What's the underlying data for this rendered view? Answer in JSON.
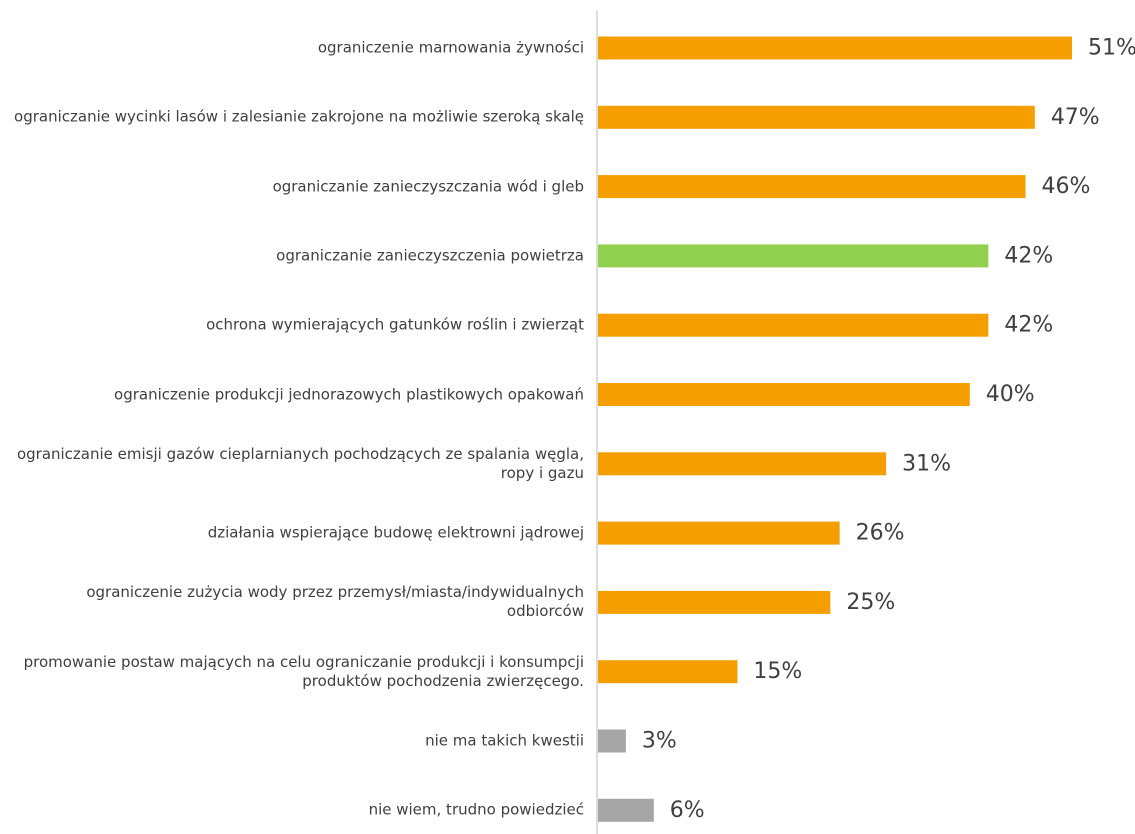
{
  "chart_data": {
    "type": "bar",
    "orientation": "horizontal",
    "title": "",
    "xlabel": "",
    "ylabel": "",
    "xlim": [
      0,
      51
    ],
    "grid": false,
    "legend": "none",
    "categories": [
      "ograniczenie marnowania żywności",
      "ograniczanie wycinki lasów i zalesianie zakrojone na możliwie szeroką skalę",
      "ograniczanie zanieczyszczania wód i gleb",
      "ograniczanie zanieczyszczenia powietrza",
      "ochrona wymierających gatunków roślin i zwierząt",
      "ograniczenie produkcji jednorazowych plastikowych opakowań",
      "ograniczanie emisji gazów cieplarnianych pochodzących ze spalania węgla, ropy i gazu",
      "działania wspierające budowę elektrowni jądrowej",
      "ograniczenie zużycia wody przez przemysł/miasta/indywidualnych odbiorców",
      "promowanie postaw mających na celu ograniczanie produkcji i konsumpcji produktów pochodzenia zwierzęcego.",
      "nie ma takich kwestii",
      "nie wiem, trudno powiedzieć"
    ],
    "values": [
      51,
      47,
      46,
      42,
      42,
      40,
      31,
      26,
      25,
      15,
      3,
      6
    ],
    "value_labels": [
      "51%",
      "47%",
      "46%",
      "42%",
      "42%",
      "40%",
      "31%",
      "26%",
      "25%",
      "15%",
      "3%",
      "6%"
    ],
    "bar_colors": [
      "#F49E00",
      "#F49E00",
      "#F49E00",
      "#92D050",
      "#F49E00",
      "#F49E00",
      "#F49E00",
      "#F49E00",
      "#F49E00",
      "#F49E00",
      "#A6A6A6",
      "#A6A6A6"
    ]
  }
}
